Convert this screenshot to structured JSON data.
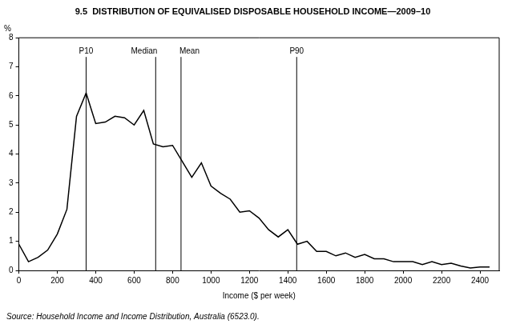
{
  "chart_data": {
    "type": "line",
    "title": "9.5  DISTRIBUTION OF EQUIVALISED DISPOSABLE HOUSEHOLD INCOME—2009–10",
    "y_label": "%",
    "x_label": "Income ($ per week)",
    "source": "Source: Household Income and Income Distribution, Australia (6523.0).",
    "x": [
      0,
      50,
      100,
      150,
      200,
      250,
      300,
      350,
      400,
      450,
      500,
      550,
      600,
      650,
      700,
      750,
      800,
      850,
      900,
      950,
      1000,
      1050,
      1100,
      1150,
      1200,
      1250,
      1300,
      1350,
      1400,
      1450,
      1500,
      1550,
      1600,
      1650,
      1700,
      1750,
      1800,
      1850,
      1900,
      1950,
      2000,
      2050,
      2100,
      2150,
      2200,
      2250,
      2300,
      2350,
      2400,
      2450
    ],
    "values": [
      0.9,
      0.3,
      0.45,
      0.7,
      1.25,
      2.1,
      5.3,
      6.1,
      5.05,
      5.1,
      5.3,
      5.25,
      5.0,
      5.5,
      4.35,
      4.25,
      4.3,
      3.75,
      3.2,
      3.7,
      2.9,
      2.65,
      2.45,
      2.0,
      2.05,
      1.8,
      1.4,
      1.15,
      1.4,
      0.9,
      1.0,
      0.65,
      0.65,
      0.5,
      0.6,
      0.45,
      0.55,
      0.4,
      0.4,
      0.3,
      0.3,
      0.3,
      0.2,
      0.3,
      0.2,
      0.25,
      0.15,
      0.08,
      0.12,
      0.12
    ],
    "color": "#000000",
    "xlim": [
      0,
      2500
    ],
    "xticks": [
      0,
      200,
      400,
      600,
      800,
      1000,
      1200,
      1400,
      1600,
      1800,
      2000,
      2200,
      2400
    ],
    "ylim": [
      0,
      8
    ],
    "yticks": [
      0,
      1,
      2,
      3,
      4,
      5,
      6,
      7,
      8
    ],
    "grid": false,
    "annotations": [
      {
        "x": 350,
        "text": "P10"
      },
      {
        "x": 712,
        "text": "Median"
      },
      {
        "x": 844,
        "text": "Mean"
      },
      {
        "x": 1446,
        "text": "P90"
      }
    ]
  }
}
